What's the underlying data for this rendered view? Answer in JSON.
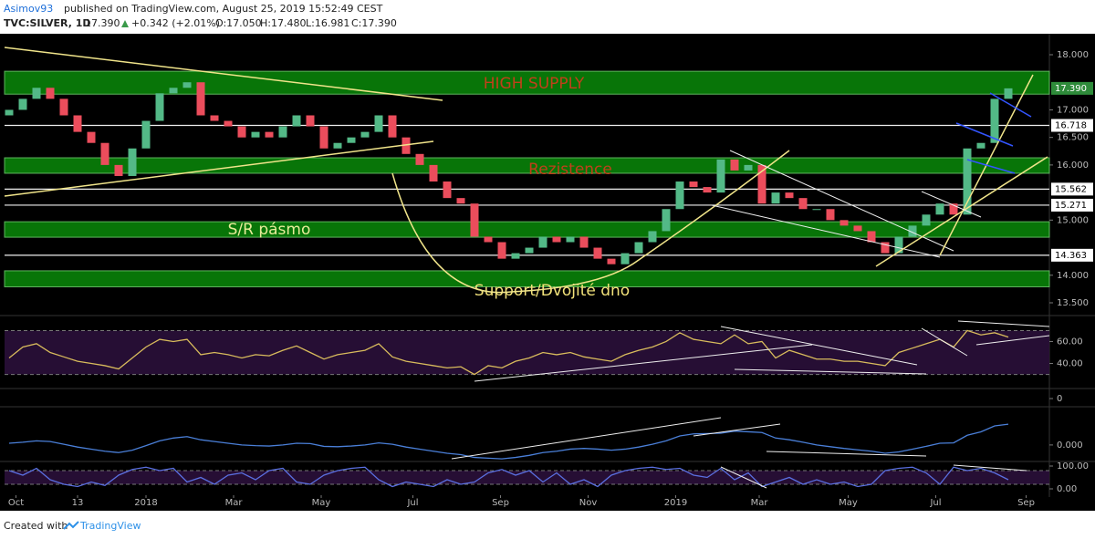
{
  "header": {
    "author": "Asimov93",
    "published": "published on TradingView.com, August 25, 2019 15:52:49 CEST",
    "symbol": "TVC:SILVER, 1D",
    "last": "17.390",
    "change": "+0.342 (+2.01%)",
    "open": "O:17.050",
    "high": "H:17.480",
    "low": "L:16.981",
    "close": "C:17.390"
  },
  "footer": {
    "created": "Created with",
    "brand": "TradingView"
  },
  "chart_data": [
    {
      "type": "candlestick",
      "up_color": "#53b987",
      "down_color": "#eb4d5c",
      "open": [
        16.9,
        17.0,
        17.2,
        17.4,
        17.2,
        16.9,
        16.6,
        16.4,
        16.0,
        15.8,
        16.3,
        16.8,
        17.3,
        17.4,
        17.5,
        16.9,
        16.8,
        16.7,
        16.5,
        16.6,
        16.5,
        16.7,
        16.9,
        16.7,
        16.3,
        16.4,
        16.5,
        16.6,
        16.9,
        16.5,
        16.2,
        16.0,
        15.7,
        15.4,
        15.3,
        14.7,
        14.6,
        14.3,
        14.4,
        14.5,
        14.7,
        14.6,
        14.7,
        14.5,
        14.3,
        14.2,
        14.4,
        14.6,
        14.8,
        15.2,
        15.7,
        15.6,
        15.5,
        16.1,
        15.9,
        16.0,
        15.3,
        15.5,
        15.4,
        15.2,
        15.2,
        15.0,
        14.9,
        14.8,
        14.6,
        14.4,
        14.7,
        14.9,
        15.1,
        15.3,
        15.1,
        16.3,
        16.4,
        17.2
      ],
      "close": [
        17.0,
        17.2,
        17.4,
        17.2,
        16.9,
        16.6,
        16.4,
        16.0,
        15.8,
        16.3,
        16.8,
        17.3,
        17.4,
        17.5,
        16.9,
        16.8,
        16.7,
        16.5,
        16.6,
        16.5,
        16.7,
        16.9,
        16.7,
        16.3,
        16.4,
        16.5,
        16.6,
        16.9,
        16.5,
        16.2,
        16.0,
        15.7,
        15.4,
        15.3,
        14.7,
        14.6,
        14.3,
        14.4,
        14.5,
        14.7,
        14.6,
        14.7,
        14.5,
        14.3,
        14.2,
        14.4,
        14.6,
        14.8,
        15.2,
        15.7,
        15.6,
        15.5,
        16.1,
        15.9,
        16.0,
        15.3,
        15.5,
        15.4,
        15.2,
        15.2,
        15.0,
        14.9,
        14.8,
        14.6,
        14.4,
        14.7,
        14.9,
        15.1,
        15.3,
        15.1,
        16.3,
        16.4,
        17.2,
        17.39
      ],
      "xticks": [
        {
          "value": 0.5,
          "label": "Oct"
        },
        {
          "value": 5,
          "label": "13"
        },
        {
          "value": 10,
          "label": "2018"
        },
        {
          "value": 16.4,
          "label": "Mar"
        },
        {
          "value": 22.8,
          "label": "May"
        },
        {
          "value": 29.5,
          "label": "Jul"
        },
        {
          "value": 35.9,
          "label": "Sep"
        },
        {
          "value": 42.3,
          "label": "Nov"
        },
        {
          "value": 48.7,
          "label": "2019"
        },
        {
          "value": 54.8,
          "label": "Mar"
        },
        {
          "value": 61.3,
          "label": "May"
        },
        {
          "value": 67.7,
          "label": "Jul"
        },
        {
          "value": 74.3,
          "label": "Sep"
        }
      ],
      "ylim": [
        13.285,
        18.364
      ],
      "yticks": [
        {
          "value": 18,
          "label": "18.000"
        },
        {
          "value": 17,
          "label": "17.000"
        },
        {
          "value": 16.5,
          "label": "16.500"
        },
        {
          "value": 16,
          "label": "16.000"
        },
        {
          "value": 15,
          "label": "15.000"
        },
        {
          "value": 14,
          "label": "14.000"
        },
        {
          "value": 13.5,
          "label": "13.500"
        }
      ],
      "zones": [
        {
          "from": 17.285,
          "to": 17.7,
          "label": "HIGH SUPPLY",
          "color": "#c0401a"
        },
        {
          "from": 15.85,
          "to": 16.13,
          "label": "Rezistence",
          "color": "#c0401a"
        },
        {
          "from": 14.69,
          "to": 14.97,
          "label": "S/R pásmo",
          "color": "#e8ec9a"
        },
        {
          "from": 13.79,
          "to": 14.08,
          "label": "Support/Dvojité dno",
          "color": "#f2e27a"
        }
      ],
      "levels": [
        {
          "value": 16.718,
          "label": "16.718"
        },
        {
          "value": 15.562,
          "label": "15.562"
        },
        {
          "value": 15.271,
          "label": "15.271"
        },
        {
          "value": 14.363,
          "label": "14.363"
        }
      ],
      "last_price": {
        "value": 17.39,
        "label": "17.390"
      }
    },
    {
      "type": "line",
      "color": "#d8bb5c",
      "band": [
        30,
        70
      ],
      "values": [
        45,
        55,
        58,
        50,
        46,
        42,
        40,
        38,
        35,
        45,
        55,
        62,
        60,
        62,
        48,
        50,
        48,
        45,
        48,
        47,
        52,
        56,
        50,
        44,
        48,
        50,
        52,
        58,
        46,
        42,
        40,
        38,
        36,
        37,
        30,
        38,
        36,
        42,
        45,
        50,
        48,
        50,
        46,
        44,
        42,
        48,
        52,
        55,
        60,
        68,
        62,
        60,
        58,
        66,
        58,
        60,
        45,
        52,
        48,
        44,
        44,
        42,
        42,
        40,
        38,
        50,
        54,
        58,
        62,
        55,
        70,
        66,
        68,
        64
      ],
      "ylim": [
        18,
        82
      ],
      "yticks": [
        {
          "value": 60,
          "label": "60.00"
        },
        {
          "value": 40,
          "label": "40.00"
        }
      ]
    },
    {
      "type": "empty",
      "ylim": [
        -1,
        1
      ],
      "yticks": [
        0
      ]
    },
    {
      "type": "line",
      "color": "#4a7fd8",
      "values": [
        0.05,
        0.08,
        0.12,
        0.1,
        0.02,
        -0.06,
        -0.12,
        -0.18,
        -0.22,
        -0.15,
        -0.02,
        0.12,
        0.2,
        0.24,
        0.15,
        0.1,
        0.05,
        0.0,
        -0.02,
        -0.03,
        0.0,
        0.05,
        0.04,
        -0.04,
        -0.05,
        -0.03,
        0.0,
        0.06,
        0.02,
        -0.06,
        -0.12,
        -0.18,
        -0.24,
        -0.28,
        -0.36,
        -0.38,
        -0.4,
        -0.36,
        -0.3,
        -0.22,
        -0.18,
        -0.12,
        -0.1,
        -0.12,
        -0.15,
        -0.12,
        -0.06,
        0.02,
        0.12,
        0.26,
        0.32,
        0.33,
        0.34,
        0.4,
        0.38,
        0.36,
        0.2,
        0.15,
        0.08,
        0.0,
        -0.05,
        -0.1,
        -0.14,
        -0.18,
        -0.24,
        -0.2,
        -0.12,
        -0.04,
        0.05,
        0.06,
        0.28,
        0.38,
        0.55,
        0.6
      ],
      "ylim": [
        -0.45,
        1.05
      ],
      "yticks": [
        {
          "value": 0,
          "label": "0.000"
        }
      ]
    },
    {
      "type": "line",
      "color": "#5a6fe0",
      "band": [
        20,
        80
      ],
      "values": [
        80,
        60,
        90,
        40,
        20,
        10,
        30,
        15,
        60,
        85,
        95,
        80,
        90,
        30,
        50,
        20,
        60,
        70,
        40,
        80,
        90,
        30,
        20,
        60,
        80,
        90,
        95,
        40,
        10,
        30,
        20,
        10,
        40,
        20,
        30,
        70,
        85,
        60,
        80,
        30,
        70,
        20,
        40,
        10,
        60,
        80,
        90,
        95,
        85,
        90,
        60,
        50,
        90,
        40,
        70,
        10,
        30,
        50,
        20,
        40,
        20,
        30,
        10,
        20,
        80,
        90,
        95,
        70,
        20,
        95,
        80,
        90,
        70,
        40
      ],
      "ylim": [
        -24,
        112
      ],
      "yticks": [
        {
          "value": 100,
          "label": "100.00"
        },
        {
          "value": 0,
          "label": "0.00"
        }
      ]
    }
  ]
}
